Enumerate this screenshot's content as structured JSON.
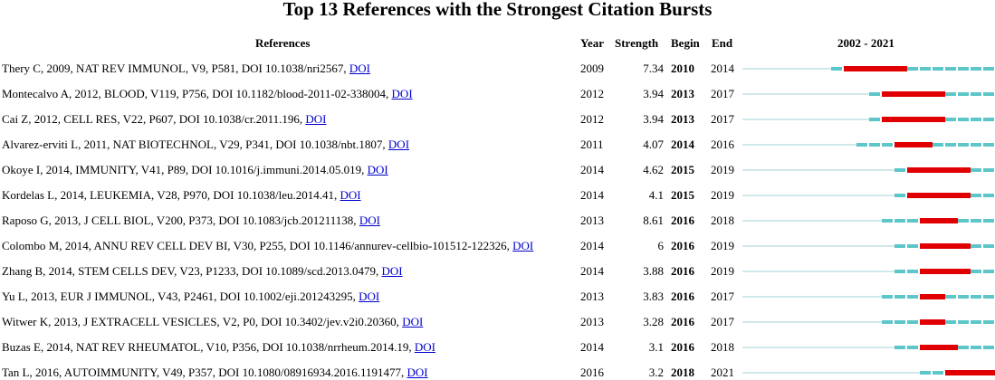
{
  "title": "Top 13 References with the Strongest Citation Bursts",
  "header": {
    "references": "References",
    "year": "Year",
    "strength": "Strength",
    "begin": "Begin",
    "end": "End",
    "range": "2002 - 2021"
  },
  "rows": [
    {
      "reference": "Thery C, 2009, NAT REV IMMUNOL, V9, P581, DOI 10.1038/nri2567, ",
      "link": "DOI",
      "year": 2009,
      "strength": 7.34,
      "begin": 2010,
      "end": 2014
    },
    {
      "reference": "Montecalvo A, 2012, BLOOD, V119, P756, DOI 10.1182/blood-2011-02-338004, ",
      "link": "DOI",
      "year": 2012,
      "strength": 3.94,
      "begin": 2013,
      "end": 2017
    },
    {
      "reference": "Cai Z, 2012, CELL RES, V22, P607, DOI 10.1038/cr.2011.196, ",
      "link": "DOI",
      "year": 2012,
      "strength": 3.94,
      "begin": 2013,
      "end": 2017
    },
    {
      "reference": "Alvarez-erviti L, 2011, NAT BIOTECHNOL, V29, P341, DOI 10.1038/nbt.1807, ",
      "link": "DOI",
      "year": 2011,
      "strength": 4.07,
      "begin": 2014,
      "end": 2016
    },
    {
      "reference": "Okoye I, 2014, IMMUNITY, V41, P89, DOI 10.1016/j.immuni.2014.05.019, ",
      "link": "DOI",
      "year": 2014,
      "strength": 4.62,
      "begin": 2015,
      "end": 2019
    },
    {
      "reference": "Kordelas L, 2014, LEUKEMIA, V28, P970, DOI 10.1038/leu.2014.41, ",
      "link": "DOI",
      "year": 2014,
      "strength": 4.1,
      "begin": 2015,
      "end": 2019
    },
    {
      "reference": "Raposo G, 2013, J CELL BIOL, V200, P373, DOI 10.1083/jcb.201211138, ",
      "link": "DOI",
      "year": 2013,
      "strength": 8.61,
      "begin": 2016,
      "end": 2018
    },
    {
      "reference": "Colombo M, 2014, ANNU REV CELL DEV BI, V30, P255, DOI 10.1146/annurev-cellbio-101512-122326, ",
      "link": "DOI",
      "year": 2014,
      "strength": 6,
      "begin": 2016,
      "end": 2019
    },
    {
      "reference": "Zhang B, 2014, STEM CELLS DEV, V23, P1233, DOI 10.1089/scd.2013.0479, ",
      "link": "DOI",
      "year": 2014,
      "strength": 3.88,
      "begin": 2016,
      "end": 2019
    },
    {
      "reference": "Yu L, 2013, EUR J IMMUNOL, V43, P2461, DOI 10.1002/eji.201243295, ",
      "link": "DOI",
      "year": 2013,
      "strength": 3.83,
      "begin": 2016,
      "end": 2017
    },
    {
      "reference": "Witwer K, 2013, J EXTRACELL VESICLES, V2, P0, DOI 10.3402/jev.v2i0.20360, ",
      "link": "DOI",
      "year": 2013,
      "strength": 3.28,
      "begin": 2016,
      "end": 2017
    },
    {
      "reference": "Buzas E, 2014, NAT REV RHEUMATOL, V10, P356, DOI 10.1038/nrrheum.2014.19, ",
      "link": "DOI",
      "year": 2014,
      "strength": 3.1,
      "begin": 2016,
      "end": 2018
    },
    {
      "reference": "Tan L, 2016, AUTOIMMUNITY, V49, P357, DOI 10.1080/08916934.2016.1191477, ",
      "link": "DOI",
      "year": 2016,
      "strength": 3.2,
      "begin": 2018,
      "end": 2021
    }
  ]
}
